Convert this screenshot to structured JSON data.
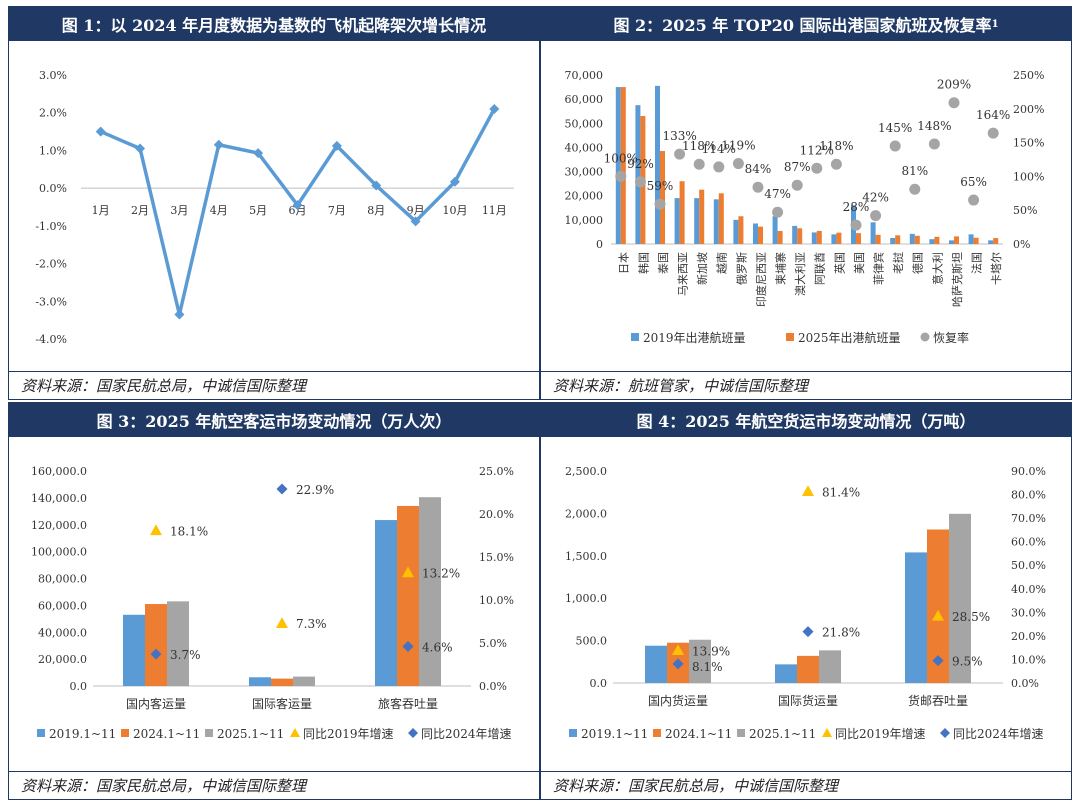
{
  "colors": {
    "header_bg": "#1f3864",
    "line": "#5b9bd5",
    "s2019": "#5b9bd5",
    "s2024": "#ed7d31",
    "s2025": "#a5a5a5",
    "recovery": "#a5a5a5",
    "tri": "#ffc000",
    "diamond": "#4472c4"
  },
  "chart_data": [
    {
      "id": "chart1",
      "type": "line",
      "title": "图 1：以 2024 年月度数据为基数的飞机起降架次增长情况",
      "categories": [
        "1月",
        "2月",
        "3月",
        "4月",
        "5月",
        "6月",
        "7月",
        "8月",
        "9月",
        "10月",
        "11月"
      ],
      "values": [
        1.5,
        1.05,
        -3.35,
        1.15,
        0.93,
        -0.45,
        1.12,
        0.07,
        -0.88,
        0.17,
        2.1
      ],
      "yticks": [
        "3.0%",
        "2.0%",
        "1.0%",
        "0.0%",
        "-1.0%",
        "-2.0%",
        "-3.0%",
        "-4.0%"
      ],
      "ylim": [
        -4,
        3
      ],
      "source": "资料来源：国家民航总局，中诚信国际整理"
    },
    {
      "id": "chart2",
      "type": "bar",
      "title": "图 2：2025 年 TOP20 国际出港国家航班及恢复率",
      "title_sup": "1",
      "categories": [
        "日本",
        "韩国",
        "泰国",
        "马来西亚",
        "新加坡",
        "越南",
        "俄罗斯",
        "印度尼西亚",
        "柬埔寨",
        "澳大利亚",
        "阿联酋",
        "英国",
        "美国",
        "菲律宾",
        "老挝",
        "德国",
        "意大利",
        "哈萨克斯坦",
        "法国",
        "卡塔尔"
      ],
      "series": [
        {
          "name": "2019年出港航班量",
          "values": [
            65000,
            57500,
            65500,
            19000,
            19000,
            18500,
            10000,
            8500,
            11500,
            7500,
            4800,
            4000,
            16000,
            9000,
            2500,
            4200,
            2000,
            1500,
            4000,
            1500
          ]
        },
        {
          "name": "2025年出港航班量",
          "values": [
            65000,
            53000,
            38500,
            26000,
            22500,
            21000,
            11500,
            7200,
            5400,
            6500,
            5400,
            4700,
            4500,
            3800,
            3600,
            3400,
            2960,
            3150,
            2600,
            2460
          ]
        }
      ],
      "recovery": {
        "name": "恢复率",
        "values": [
          100,
          92,
          59,
          133,
          118,
          114,
          119,
          84,
          47,
          87,
          112,
          118,
          28,
          42,
          145,
          81,
          148,
          209,
          65,
          164
        ],
        "labels": [
          "100%",
          "92%",
          "59%",
          "133%",
          "118%",
          "114%",
          "119%",
          "84%",
          "47%",
          "87%",
          "112%",
          "118%",
          "28%",
          "42%",
          "145%",
          "81%",
          "148%",
          "209%",
          "65%",
          "164%"
        ]
      },
      "yleft_ticks": [
        "70,000",
        "60,000",
        "50,000",
        "40,000",
        "30,000",
        "20,000",
        "10,000",
        "0"
      ],
      "yleft_lim": [
        0,
        70000
      ],
      "yright_ticks": [
        "250%",
        "200%",
        "150%",
        "100%",
        "50%",
        "0%"
      ],
      "yright_lim": [
        0,
        250
      ],
      "source": "资料来源：航班管家，中诚信国际整理"
    },
    {
      "id": "chart3",
      "type": "bar",
      "title": "图 3：2025 年航空客运市场变动情况（万人次）",
      "categories": [
        "国内客运量",
        "国际客运量",
        "旅客吞吐量"
      ],
      "series": [
        {
          "name": "2019.1~11",
          "values": [
            53000,
            6500,
            123500
          ]
        },
        {
          "name": "2024.1~11",
          "values": [
            61000,
            5500,
            134000
          ]
        },
        {
          "name": "2025.1~11",
          "values": [
            63000,
            7000,
            140500
          ]
        }
      ],
      "growth_vs2019": {
        "name": "同比2019年增速",
        "values": [
          18.1,
          7.3,
          13.2
        ],
        "labels": [
          "18.1%",
          "7.3%",
          "13.2%"
        ]
      },
      "growth_vs2024": {
        "name": "同比2024年增速",
        "values": [
          3.7,
          22.9,
          4.6
        ],
        "labels": [
          "3.7%",
          "22.9%",
          "4.6%"
        ]
      },
      "yleft_ticks": [
        "160,000.0",
        "140,000.0",
        "120,000.0",
        "100,000.0",
        "80,000.0",
        "60,000.0",
        "40,000.0",
        "20,000.0",
        "0.0"
      ],
      "yleft_lim": [
        0,
        160000
      ],
      "yright_ticks": [
        "25.0%",
        "20.0%",
        "15.0%",
        "10.0%",
        "5.0%",
        "0.0%"
      ],
      "yright_lim": [
        0,
        25
      ],
      "source": "资料来源：国家民航总局，中诚信国际整理"
    },
    {
      "id": "chart4",
      "type": "bar",
      "title": "图 4：2025 年航空货运市场变动情况（万吨）",
      "categories": [
        "国内货运量",
        "国际货运量",
        "货邮吞吐量"
      ],
      "series": [
        {
          "name": "2019.1~11",
          "values": [
            440,
            220,
            1540
          ]
        },
        {
          "name": "2024.1~11",
          "values": [
            475,
            320,
            1810
          ]
        },
        {
          "name": "2025.1~11",
          "values": [
            510,
            385,
            1995
          ]
        }
      ],
      "growth_vs2019": {
        "name": "同比2019年增速",
        "values": [
          13.9,
          81.4,
          28.5
        ],
        "labels": [
          "13.9%",
          "81.4%",
          "28.5%"
        ]
      },
      "growth_vs2024": {
        "name": "同比2024年增速",
        "values": [
          8.1,
          21.8,
          9.5
        ],
        "labels": [
          "8.1%",
          "21.8%",
          "9.5%"
        ]
      },
      "yleft_ticks": [
        "2,500.0",
        "2,000.0",
        "1,500.0",
        "1,000.0",
        "500.0",
        "0.0"
      ],
      "yleft_lim": [
        0,
        2500
      ],
      "yright_ticks": [
        "90.0%",
        "80.0%",
        "70.0%",
        "60.0%",
        "50.0%",
        "40.0%",
        "30.0%",
        "20.0%",
        "10.0%",
        "0.0%"
      ],
      "yright_lim": [
        0,
        90
      ],
      "source": "资料来源：国家民航总局，中诚信国际整理"
    }
  ]
}
